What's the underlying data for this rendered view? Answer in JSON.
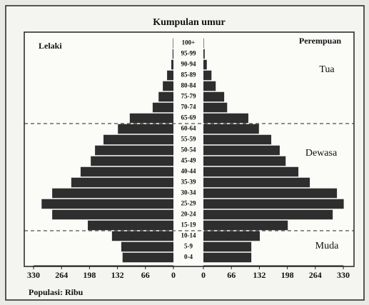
{
  "chart_data": {
    "type": "pyramid",
    "title": "Kumpulan umur",
    "categories": [
      "100+",
      "95-99",
      "90-94",
      "85-89",
      "80-84",
      "75-79",
      "70-74",
      "65-69",
      "60-64",
      "55-59",
      "50-54",
      "45-49",
      "40-44",
      "35-39",
      "30-34",
      "25-29",
      "20-24",
      "15-19",
      "10-14",
      "5-9",
      "0-4"
    ],
    "series": [
      {
        "name": "Lelaki",
        "color": "#2e2e2e",
        "values": [
          1,
          2,
          5,
          15,
          25,
          35,
          49,
          103,
          131,
          165,
          185,
          195,
          219,
          241,
          286,
          311,
          286,
          202,
          145,
          123,
          120
        ]
      },
      {
        "name": "Perempuan",
        "color": "#2e2e2e",
        "values": [
          1,
          3,
          8,
          19,
          29,
          49,
          56,
          106,
          131,
          160,
          180,
          194,
          224,
          251,
          315,
          331,
          305,
          199,
          133,
          113,
          113
        ]
      }
    ],
    "xlim": [
      0,
      330
    ],
    "xticks": [
      0,
      66,
      132,
      198,
      264,
      330
    ],
    "annotations": [
      "Tua",
      "Dewasa",
      "Muda"
    ],
    "footer": "Populasi: Ribu"
  }
}
